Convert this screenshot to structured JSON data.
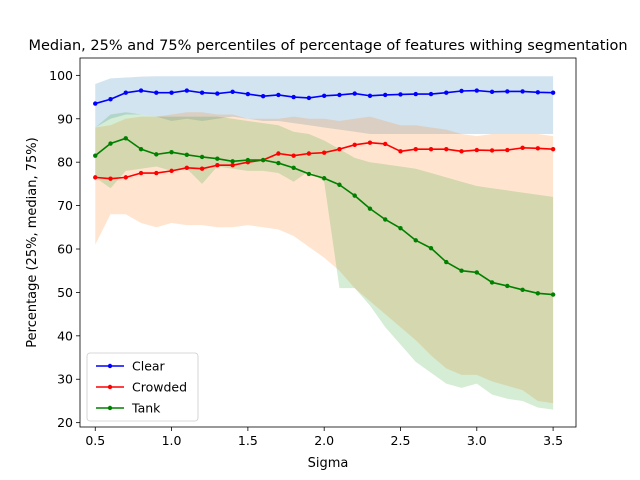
{
  "chart_data": {
    "type": "line",
    "title": "Median, 25% and 75% percentiles of percentage of features withing segmentation",
    "xlabel": "Sigma",
    "ylabel": "Percentage (25%, median, 75%)",
    "xlim": [
      0.4,
      3.65
    ],
    "ylim": [
      19,
      104
    ],
    "xticks": [
      "0.5",
      "1.0",
      "1.5",
      "2.0",
      "2.5",
      "3.0",
      "3.5"
    ],
    "yticks": [
      "20",
      "30",
      "40",
      "50",
      "60",
      "70",
      "80",
      "90",
      "100"
    ],
    "legend_position": "lower-left",
    "grid": false,
    "x": [
      0.5,
      0.6,
      0.7,
      0.8,
      0.9,
      1.0,
      1.1,
      1.2,
      1.3,
      1.4,
      1.5,
      1.6,
      1.7,
      1.8,
      1.9,
      2.0,
      2.1,
      2.2,
      2.3,
      2.4,
      2.5,
      2.6,
      2.7,
      2.8,
      2.9,
      3.0,
      3.1,
      3.2,
      3.3,
      3.4,
      3.5
    ],
    "series": [
      {
        "name": "Clear",
        "color": "#0000ff",
        "band_color": "#1f77b4",
        "median": [
          93.5,
          94.5,
          96.0,
          96.5,
          96.0,
          96.0,
          96.5,
          96.0,
          95.8,
          96.2,
          95.7,
          95.2,
          95.5,
          95.0,
          94.8,
          95.3,
          95.5,
          95.8,
          95.3,
          95.5,
          95.6,
          95.7,
          95.7,
          96.0,
          96.4,
          96.5,
          96.2,
          96.3,
          96.3,
          96.1,
          96.0
        ],
        "p25": [
          88.0,
          90.0,
          91.0,
          91.0,
          90.5,
          89.5,
          90.0,
          89.5,
          90.0,
          90.5,
          90.0,
          89.5,
          89.5,
          89.0,
          88.5,
          88.0,
          87.5,
          87.0,
          86.5,
          86.5,
          86.5,
          86.5,
          86.5,
          86.5,
          86.5,
          86.5,
          86.5,
          86.5,
          86.5,
          86.5,
          86.5
        ],
        "p75": [
          98.0,
          99.3,
          99.5,
          99.7,
          99.8,
          99.8,
          99.8,
          99.8,
          99.8,
          99.8,
          99.8,
          99.8,
          99.8,
          99.8,
          99.8,
          99.8,
          99.8,
          99.8,
          99.8,
          99.8,
          99.8,
          99.8,
          99.8,
          99.8,
          99.8,
          99.8,
          99.8,
          99.8,
          99.8,
          99.8,
          99.8
        ]
      },
      {
        "name": "Crowded",
        "color": "#ff0000",
        "band_color": "#ff7f0e",
        "median": [
          76.5,
          76.2,
          76.5,
          77.5,
          77.5,
          78.0,
          78.7,
          78.5,
          79.3,
          79.3,
          80.0,
          80.5,
          82.0,
          81.5,
          82.0,
          82.2,
          83.0,
          84.0,
          84.5,
          84.2,
          82.5,
          83.0,
          83.0,
          83.0,
          82.5,
          82.8,
          82.7,
          82.8,
          83.3,
          83.2,
          83.0
        ],
        "p25": [
          61.0,
          68.0,
          68.0,
          66.0,
          65.0,
          66.0,
          65.5,
          65.5,
          65.0,
          65.0,
          65.5,
          65.0,
          64.5,
          63.0,
          60.5,
          58.0,
          55.0,
          51.0,
          48.0,
          45.0,
          42.0,
          39.0,
          35.5,
          32.5,
          31.0,
          31.0,
          29.5,
          28.5,
          27.5,
          25.0,
          24.5
        ],
        "p75": [
          88.0,
          88.5,
          90.0,
          90.5,
          90.5,
          91.0,
          91.5,
          91.5,
          91.0,
          91.0,
          90.0,
          90.0,
          90.0,
          90.5,
          90.0,
          90.0,
          89.5,
          90.0,
          90.5,
          89.5,
          88.5,
          88.5,
          88.0,
          87.5,
          86.5,
          86.0,
          86.5,
          86.5,
          86.5,
          86.5,
          86.0
        ]
      },
      {
        "name": "Tank",
        "color": "#008000",
        "band_color": "#2ca02c",
        "median": [
          81.5,
          84.3,
          85.5,
          83.0,
          81.8,
          82.3,
          81.7,
          81.2,
          80.8,
          80.2,
          80.5,
          80.5,
          79.8,
          78.7,
          77.3,
          76.3,
          74.8,
          72.3,
          69.3,
          66.8,
          64.8,
          62.0,
          60.2,
          57.0,
          55.0,
          54.6,
          52.3,
          51.5,
          50.6,
          49.8,
          49.5
        ],
        "p25": [
          76.5,
          74.0,
          78.0,
          78.5,
          79.0,
          78.0,
          78.5,
          75.0,
          79.0,
          78.5,
          78.0,
          78.0,
          77.5,
          75.5,
          78.0,
          75.5,
          51.0,
          51.0,
          47.0,
          42.0,
          38.0,
          34.0,
          31.5,
          29.0,
          28.0,
          29.0,
          26.5,
          25.5,
          25.0,
          23.5,
          23.0
        ],
        "p75": [
          88.0,
          91.0,
          91.5,
          91.0,
          90.5,
          90.5,
          90.5,
          90.5,
          90.5,
          90.0,
          89.5,
          89.0,
          88.5,
          87.0,
          86.5,
          85.0,
          83.0,
          81.0,
          80.0,
          79.5,
          79.0,
          78.5,
          77.5,
          76.5,
          75.5,
          74.5,
          74.0,
          73.5,
          73.0,
          72.5,
          72.0
        ]
      }
    ]
  }
}
